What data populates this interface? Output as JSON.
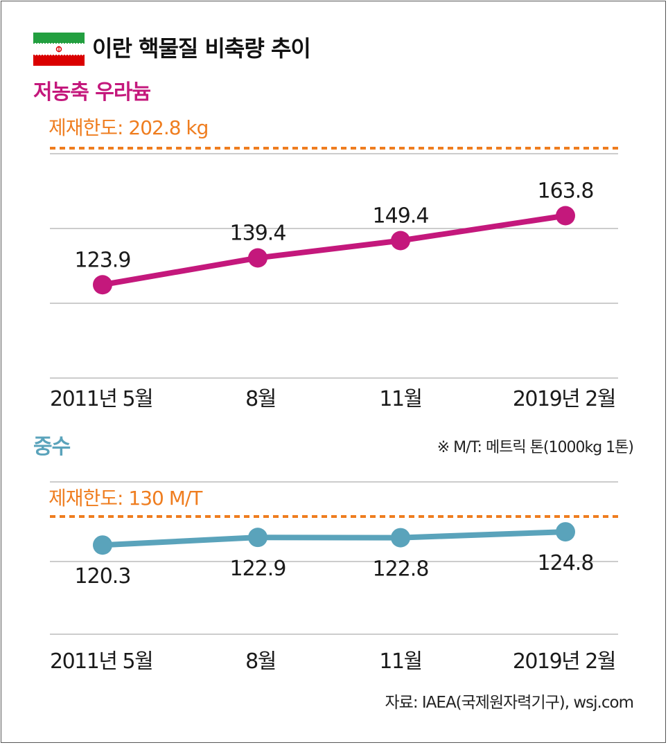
{
  "title": "이란 핵물질 비축량 추이",
  "flag_icon": "iran-flag-icon",
  "colors": {
    "uranium": "#c4187c",
    "heavy_water": "#5aa3bb",
    "limit": "#ef7d1f",
    "grid": "#9a9a9a"
  },
  "note": "※ M/T: 메트릭 톤(1000kg 1톤)",
  "source": "자료: IAEA(국제원자력기구), wsj.com",
  "chart_data": [
    {
      "type": "line",
      "title": "저농축 우라늄",
      "limit_label": "제재한도: 202.8 kg",
      "limit": 202.8,
      "categories": [
        "2011년 5월",
        "8월",
        "11월",
        "2019년 2월"
      ],
      "series": [
        {
          "values": [
            123.9,
            139.4,
            149.4,
            163.8
          ],
          "labels": [
            "123.9",
            "139.4",
            "149.4",
            "163.8"
          ]
        }
      ],
      "ylim": [
        70,
        215
      ],
      "grid": true
    },
    {
      "type": "line",
      "title": "중수",
      "limit_label": "제재한도: 130 M/T",
      "limit": 130,
      "categories": [
        "2011년 5월",
        "8월",
        "11월",
        "2019년 2월"
      ],
      "series": [
        {
          "values": [
            120.3,
            122.9,
            122.8,
            124.8
          ],
          "labels": [
            "120.3",
            "122.9",
            "122.8",
            "124.8"
          ]
        }
      ],
      "ylim": [
        90,
        140
      ],
      "grid": true
    }
  ]
}
